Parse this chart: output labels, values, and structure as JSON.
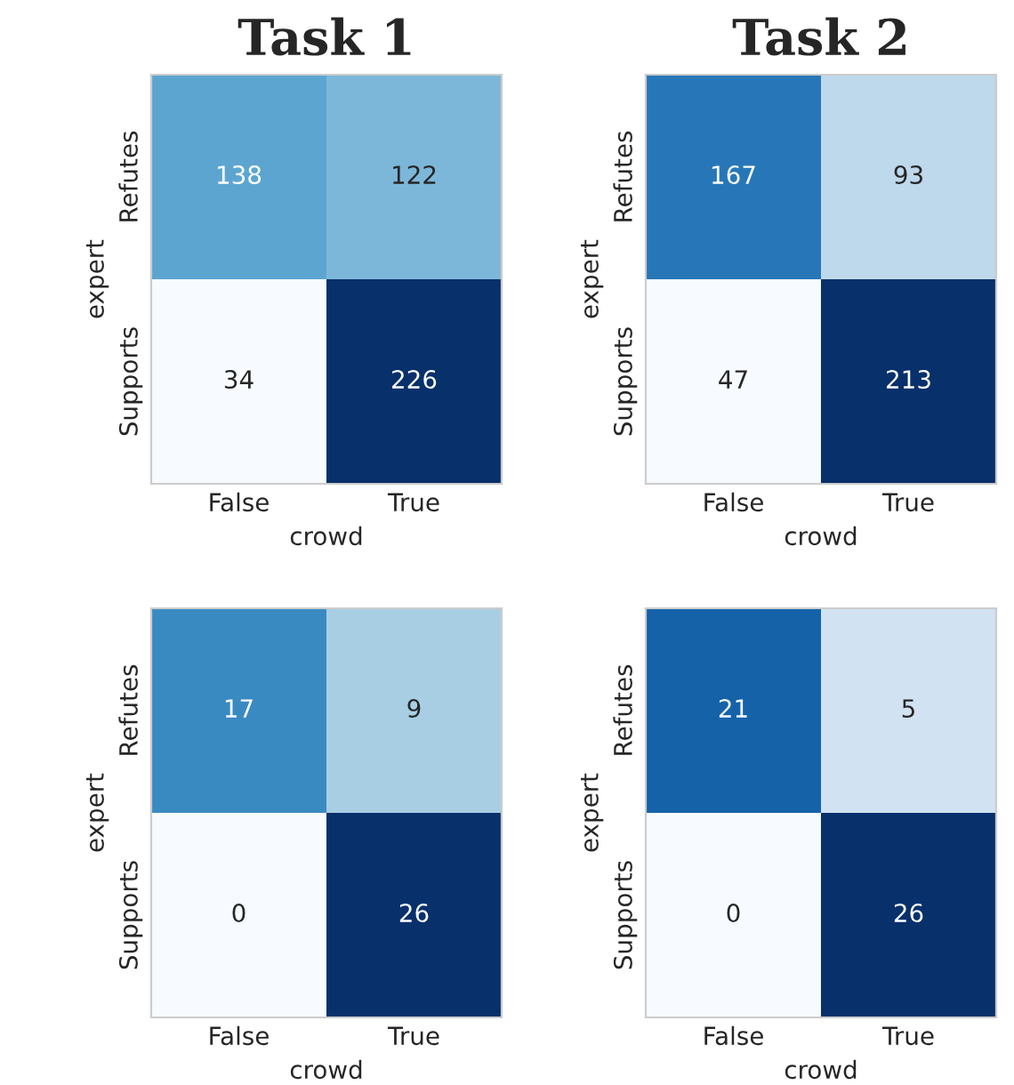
{
  "chart_data": [
    {
      "type": "heatmap",
      "title": "Task 1",
      "xlabel": "crowd",
      "ylabel": "expert",
      "categories": [
        "False",
        "True"
      ],
      "y_categories": [
        "Refutes",
        "Supports"
      ],
      "cells": [
        [
          138,
          122
        ],
        [
          34,
          226
        ]
      ],
      "data_labels": true
    },
    {
      "type": "heatmap",
      "title": "Task 2",
      "xlabel": "crowd",
      "ylabel": "expert",
      "categories": [
        "False",
        "True"
      ],
      "y_categories": [
        "Refutes",
        "Supports"
      ],
      "cells": [
        [
          167,
          93
        ],
        [
          47,
          213
        ]
      ],
      "data_labels": true
    },
    {
      "type": "heatmap",
      "xlabel": "crowd",
      "ylabel": "expert",
      "categories": [
        "False",
        "True"
      ],
      "y_categories": [
        "Refutes",
        "Supports"
      ],
      "cells": [
        [
          17,
          9
        ],
        [
          0,
          26
        ]
      ],
      "data_labels": true
    },
    {
      "type": "heatmap",
      "xlabel": "crowd",
      "ylabel": "expert",
      "categories": [
        "False",
        "True"
      ],
      "y_categories": [
        "Refutes",
        "Supports"
      ],
      "cells": [
        [
          21,
          5
        ],
        [
          0,
          26
        ]
      ],
      "data_labels": true
    }
  ]
}
